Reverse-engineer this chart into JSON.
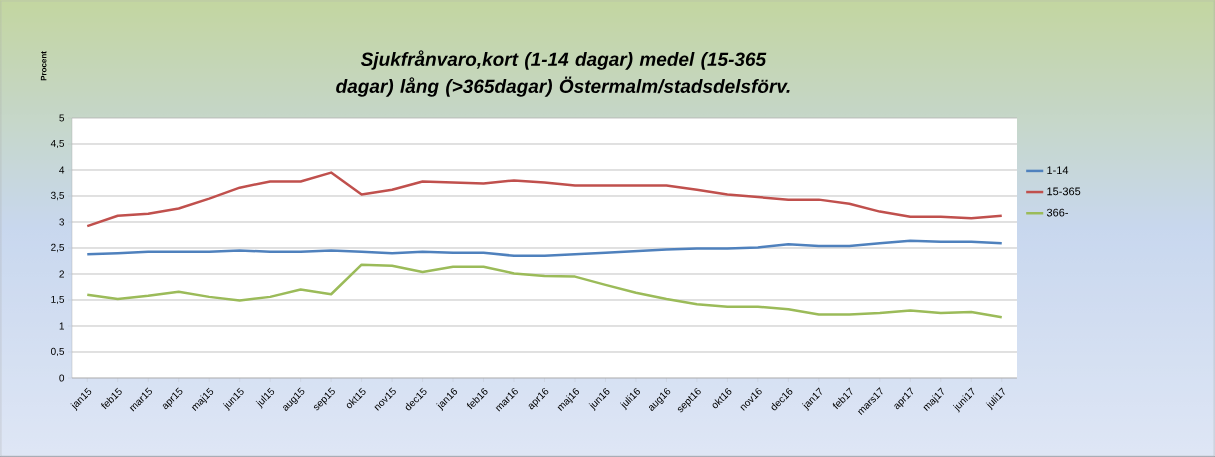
{
  "chart_data": {
    "type": "line",
    "title": "Sjukfrånvaro,kort (1-14 dagar) medel (15-365 dagar) lång (>365dagar) Östermalm/stadsdelsförv.",
    "ylabel": "Procent",
    "categories": [
      "jan15",
      "feb15",
      "mar15",
      "apr15",
      "maj15",
      "jun15",
      "jul15",
      "aug15",
      "sep15",
      "okt15",
      "nov15",
      "dec15",
      "jan16",
      "feb16",
      "mar16",
      "apr16",
      "maj16",
      "jun16",
      "juli16",
      "aug16",
      "sept16",
      "okt16",
      "nov16",
      "dec16",
      "jan17",
      "feb17",
      "mars17",
      "apr17",
      "maj17",
      "juni17",
      "juli17"
    ],
    "series": [
      {
        "name": "1-14",
        "color": "#4f81bd",
        "values": [
          2.38,
          2.4,
          2.43,
          2.43,
          2.43,
          2.45,
          2.43,
          2.43,
          2.45,
          2.43,
          2.4,
          2.43,
          2.41,
          2.41,
          2.35,
          2.35,
          2.38,
          2.41,
          2.44,
          2.47,
          2.49,
          2.49,
          2.51,
          2.57,
          2.54,
          2.54,
          2.59,
          2.64,
          2.62,
          2.62,
          2.59
        ]
      },
      {
        "name": "15-365",
        "color": "#c0504d",
        "values": [
          2.92,
          3.12,
          3.16,
          3.26,
          3.45,
          3.66,
          3.78,
          3.78,
          3.95,
          3.53,
          3.62,
          3.78,
          3.76,
          3.74,
          3.8,
          3.76,
          3.7,
          3.7,
          3.7,
          3.7,
          3.62,
          3.53,
          3.48,
          3.43,
          3.43,
          3.35,
          3.2,
          3.1,
          3.1,
          3.07,
          3.12
        ]
      },
      {
        "name": "366-",
        "color": "#9bbb59",
        "values": [
          1.6,
          1.52,
          1.58,
          1.66,
          1.56,
          1.49,
          1.56,
          1.7,
          1.61,
          2.18,
          2.16,
          2.04,
          2.14,
          2.14,
          2.01,
          1.96,
          1.95,
          1.79,
          1.64,
          1.52,
          1.42,
          1.37,
          1.37,
          1.32,
          1.22,
          1.22,
          1.25,
          1.3,
          1.25,
          1.27,
          1.17
        ]
      }
    ],
    "ylim": [
      0,
      5
    ],
    "yticks": [
      0,
      {
        "value": 0.5,
        "label": "0,5"
      },
      1,
      {
        "value": 1.5,
        "label": "1,5"
      },
      2,
      {
        "value": 2.5,
        "label": "2,5"
      },
      3,
      {
        "value": 3.5,
        "label": "3,5"
      },
      4,
      {
        "value": 4.5,
        "label": "4,5"
      },
      5
    ],
    "grid": "y",
    "legend": "right",
    "marker": "none",
    "line_style": "solid"
  }
}
